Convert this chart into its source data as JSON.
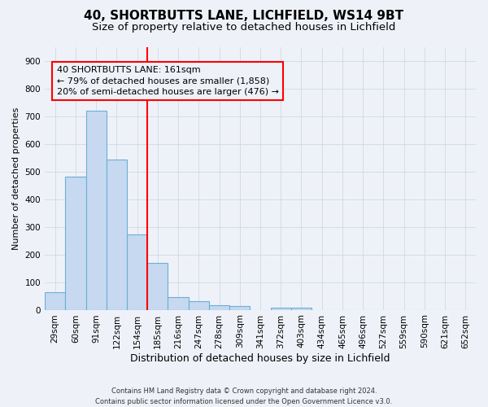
{
  "title1": "40, SHORTBUTTS LANE, LICHFIELD, WS14 9BT",
  "title2": "Size of property relative to detached houses in Lichfield",
  "xlabel": "Distribution of detached houses by size in Lichfield",
  "ylabel": "Number of detached properties",
  "footnote": "Contains HM Land Registry data © Crown copyright and database right 2024.\nContains public sector information licensed under the Open Government Licence v3.0.",
  "categories": [
    "29sqm",
    "60sqm",
    "91sqm",
    "122sqm",
    "154sqm",
    "185sqm",
    "216sqm",
    "247sqm",
    "278sqm",
    "309sqm",
    "341sqm",
    "372sqm",
    "403sqm",
    "434sqm",
    "465sqm",
    "496sqm",
    "527sqm",
    "559sqm",
    "590sqm",
    "621sqm",
    "652sqm"
  ],
  "values": [
    62,
    481,
    718,
    544,
    271,
    170,
    47,
    32,
    16,
    13,
    0,
    8,
    8,
    0,
    0,
    0,
    0,
    0,
    0,
    0,
    0
  ],
  "bar_color": "#c6d9f0",
  "bar_edge_color": "#6baed6",
  "marker_line_index": 4,
  "marker_line_color": "red",
  "annotation_line1": "40 SHORTBUTTS LANE: 161sqm",
  "annotation_line2": "← 79% of detached houses are smaller (1,858)",
  "annotation_line3": "20% of semi-detached houses are larger (476) →",
  "annotation_box_color": "red",
  "ylim": [
    0,
    950
  ],
  "yticks": [
    0,
    100,
    200,
    300,
    400,
    500,
    600,
    700,
    800,
    900
  ],
  "bg_color": "#eef2f8",
  "grid_color": "#d0d8e8",
  "title1_fontsize": 11,
  "title2_fontsize": 9.5,
  "xlabel_fontsize": 9,
  "ylabel_fontsize": 8,
  "tick_fontsize": 7.5,
  "annotation_fontsize": 8
}
